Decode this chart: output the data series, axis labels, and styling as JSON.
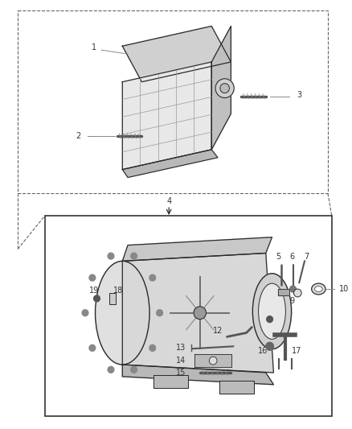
{
  "bg_color": "#ffffff",
  "fig_width": 4.38,
  "fig_height": 5.33,
  "label_fontsize": 7.0,
  "label_color": "#333333",
  "line_color": "#2a2a2a",
  "gray_line": "#555555",
  "light_fill": "#e8e8e8",
  "mid_fill": "#cccccc",
  "dark_fill": "#aaaaaa"
}
